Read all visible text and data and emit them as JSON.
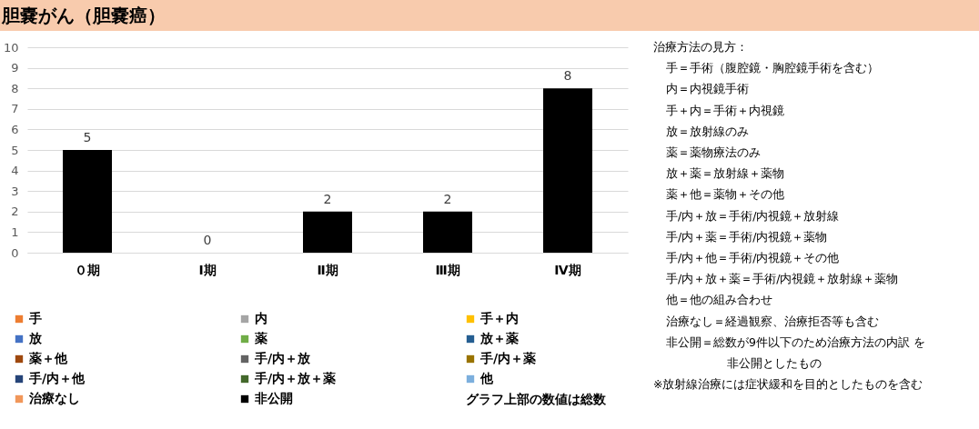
{
  "chart_data": {
    "type": "bar",
    "title": "胆嚢がん（胆嚢癌）",
    "stacked": true,
    "categories": [
      "０期",
      "Ⅰ期",
      "Ⅱ期",
      "Ⅲ期",
      "Ⅳ期"
    ],
    "series": [
      {
        "name": "手",
        "color": "#ed7d31",
        "values": [
          0,
          0,
          0,
          0,
          0
        ]
      },
      {
        "name": "内",
        "color": "#a5a5a5",
        "values": [
          0,
          0,
          0,
          0,
          0
        ]
      },
      {
        "name": "手＋内",
        "color": "#ffc000",
        "values": [
          0,
          0,
          0,
          0,
          0
        ]
      },
      {
        "name": "放",
        "color": "#4472c4",
        "values": [
          0,
          0,
          0,
          0,
          0
        ]
      },
      {
        "name": "薬",
        "color": "#70ad47",
        "values": [
          0,
          0,
          0,
          0,
          0
        ]
      },
      {
        "name": "放＋薬",
        "color": "#255e91",
        "values": [
          0,
          0,
          0,
          0,
          0
        ]
      },
      {
        "name": "薬＋他",
        "color": "#9e480e",
        "values": [
          0,
          0,
          0,
          0,
          0
        ]
      },
      {
        "name": "手/内＋放",
        "color": "#636363",
        "values": [
          0,
          0,
          0,
          0,
          0
        ]
      },
      {
        "name": "手/内＋薬",
        "color": "#997300",
        "values": [
          0,
          0,
          0,
          0,
          0
        ]
      },
      {
        "name": "手/内＋他",
        "color": "#264478",
        "values": [
          0,
          0,
          0,
          0,
          0
        ]
      },
      {
        "name": "手/内＋放＋薬",
        "color": "#43682b",
        "values": [
          0,
          0,
          0,
          0,
          0
        ]
      },
      {
        "name": "他",
        "color": "#7cafdd",
        "values": [
          0,
          0,
          0,
          0,
          0
        ]
      },
      {
        "name": "治療なし",
        "color": "#f1975a",
        "values": [
          0,
          0,
          0,
          0,
          0
        ]
      },
      {
        "name": "非公開",
        "color": "#000000",
        "values": [
          5,
          0,
          2,
          2,
          8
        ]
      }
    ],
    "totals": [
      "5",
      "0",
      "2",
      "2",
      "8"
    ],
    "ylim": [
      0,
      10
    ],
    "yticks": [
      0,
      1,
      2,
      3,
      4,
      5,
      6,
      7,
      8,
      9,
      10
    ],
    "grid": "y",
    "legend": "bottom",
    "annotations": [
      "グラフ上部の数値は総数",
      "治療方法の見方：",
      "手＝手術（腹腔鏡・胸腔鏡手術を含む）",
      "内＝内視鏡手術",
      "手＋内＝手術＋内視鏡",
      "放＝放射線のみ",
      "薬＝薬物療法のみ",
      "放＋薬＝放射線＋薬物",
      "薬＋他＝薬物＋その他",
      "手/内＋放＝手術/内視鏡＋放射線",
      "手/内＋薬＝手術/内視鏡＋薬物",
      "手/内＋他＝手術/内視鏡＋その他",
      "手/内＋放＋薬＝手術/内視鏡＋放射線＋薬物",
      "他＝他の組み合わせ",
      "治療なし＝経過観察、治療拒否等も含む",
      "非公開＝総数が9件以下のため治療方法の内訳 を非公開としたもの",
      "※放射線治療には症状緩和を目的としたものを含む"
    ]
  }
}
